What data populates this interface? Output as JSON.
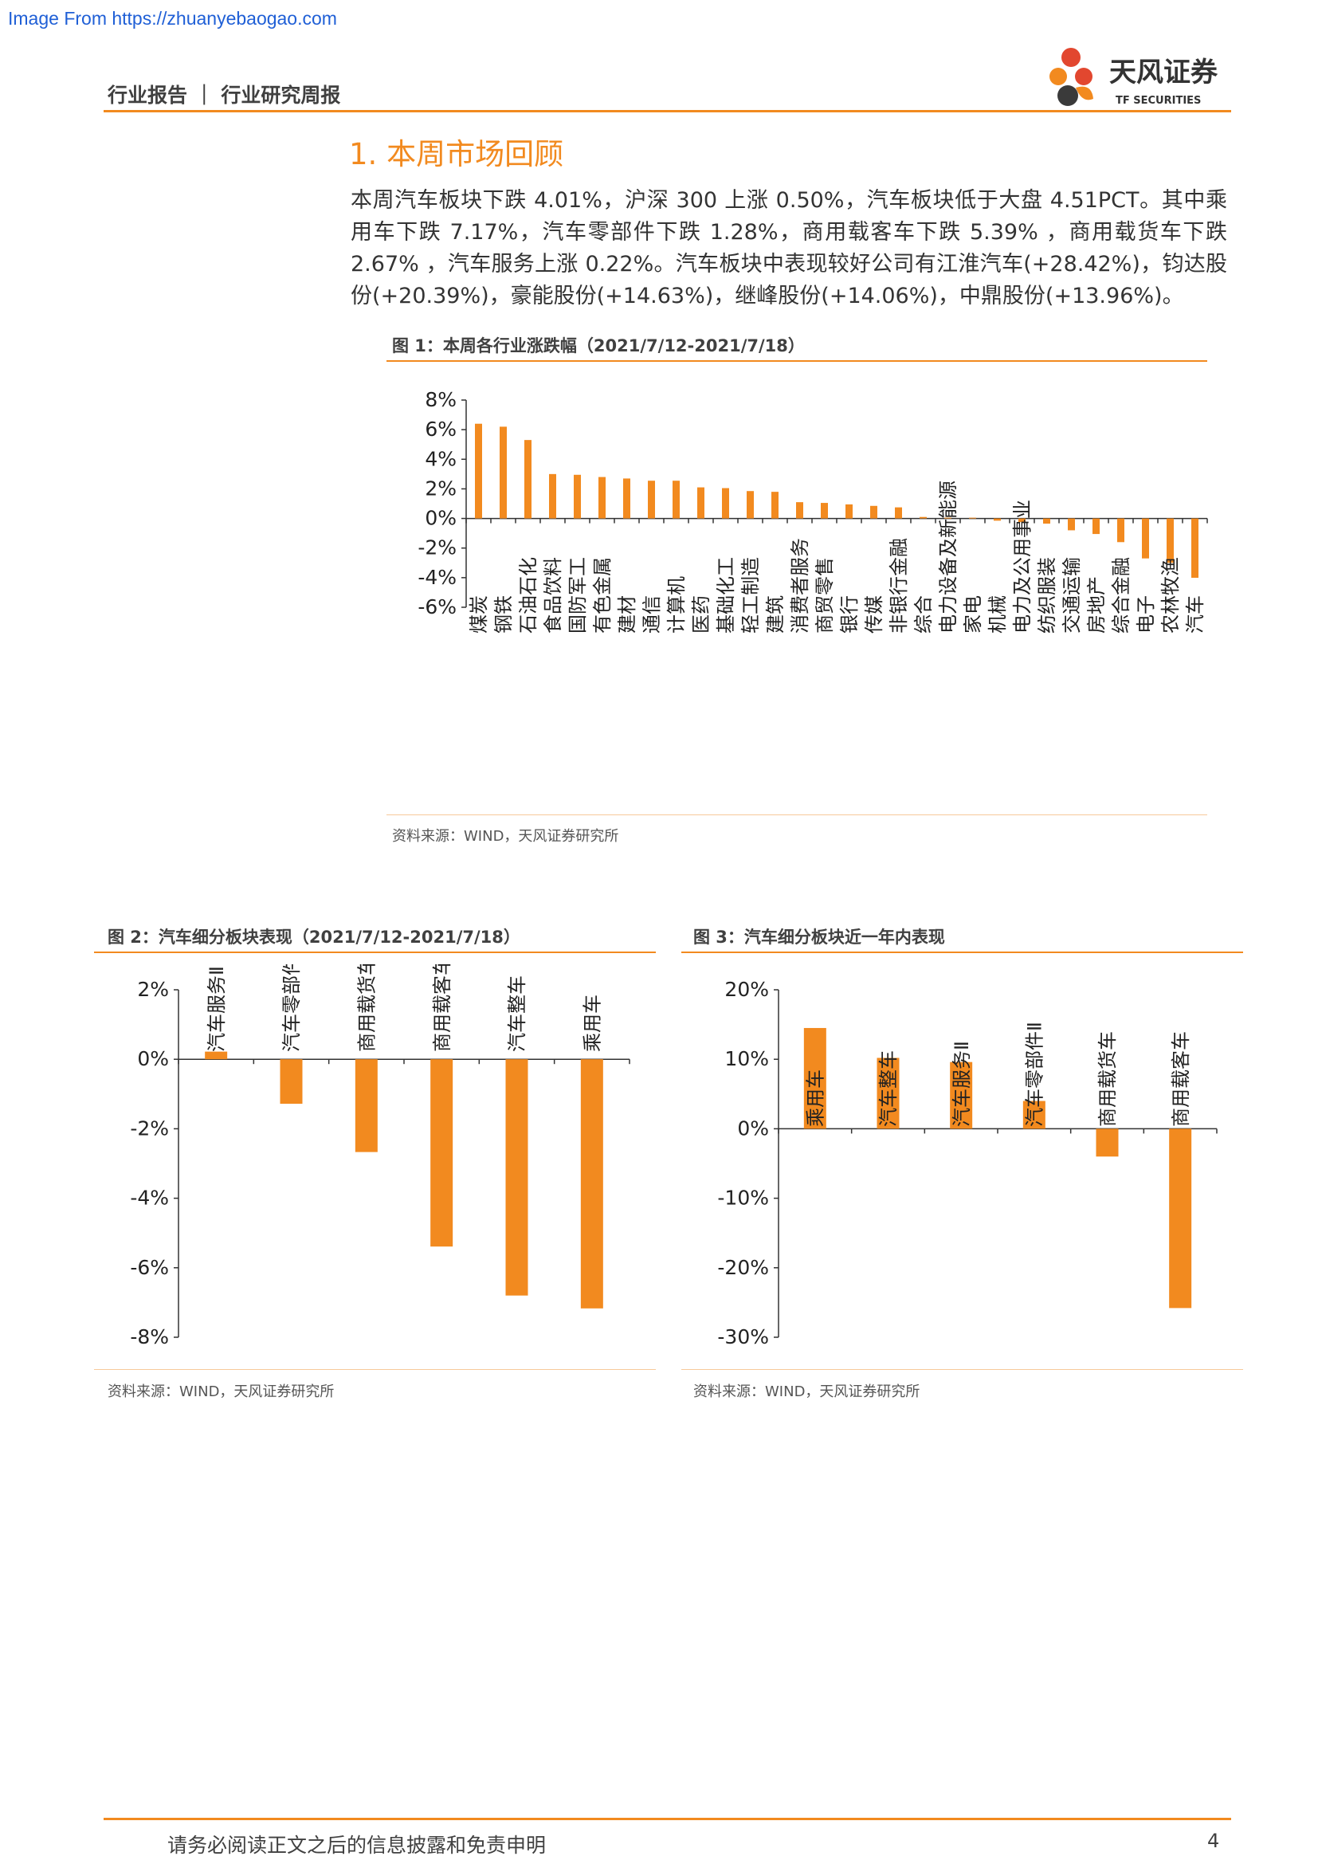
{
  "watermark": "Image From https://zhuanyebaogao.com",
  "header": {
    "left": "行业报告 ｜ 行业研究周报",
    "brand_cn": "天风证券",
    "brand_en": "TF SECURITIES"
  },
  "section_title": "1. 本周市场回顾",
  "body_text": "本周汽车板块下跌 4.01%，沪深 300 上涨 0.50%，汽车板块低于大盘 4.51PCT。其中乘用车下跌 7.17%，汽车零部件下跌 1.28%，商用载客车下跌 5.39% ，商用载货车下跌 2.67% ，汽车服务上涨 0.22%。汽车板块中表现较好公司有江淮汽车(+28.42%)，钧达股份(+20.39%)，豪能股份(+14.63%)，继峰股份(+14.06%)，中鼎股份(+13.96%)。",
  "colors": {
    "accent": "#f28a1f",
    "text": "#404040"
  },
  "figures": {
    "fig1": {
      "title": "图 1：本周各行业涨跌幅（2021/7/12-2021/7/18）",
      "source": "资料来源：WIND，天风证券研究所"
    },
    "fig2": {
      "title": "图 2：汽车细分板块表现（2021/7/12-2021/7/18）",
      "source": "资料来源：WIND，天风证券研究所"
    },
    "fig3": {
      "title": "图 3：汽车细分板块近一年内表现",
      "source": "资料来源：WIND，天风证券研究所"
    }
  },
  "chart_data": [
    {
      "type": "bar",
      "title": "图 1：本周各行业涨跌幅（2021/7/12-2021/7/18）",
      "categories": [
        "煤炭",
        "钢铁",
        "石油石化",
        "食品饮料",
        "国防军工",
        "有色金属",
        "建材",
        "通信",
        "计算机",
        "医药",
        "基础化工",
        "轻工制造",
        "建筑",
        "消费者服务",
        "商贸零售",
        "银行",
        "传媒",
        "非银行金融",
        "综合",
        "电力设备及新能源",
        "家电",
        "机械",
        "电力及公用事业",
        "纺织服装",
        "交通运输",
        "房地产",
        "综合金融",
        "电子",
        "农林牧渔",
        "汽车"
      ],
      "values": [
        6.4,
        6.2,
        5.3,
        3.0,
        2.95,
        2.8,
        2.7,
        2.55,
        2.55,
        2.1,
        2.05,
        1.85,
        1.8,
        1.1,
        1.05,
        0.95,
        0.85,
        0.75,
        0.1,
        0.05,
        0.05,
        -0.15,
        -0.25,
        -0.35,
        -0.8,
        -1.05,
        -1.6,
        -2.7,
        -3.0,
        -4.01
      ],
      "yticks": [
        "8%",
        "6%",
        "4%",
        "2%",
        "0%",
        "-2%",
        "-4%",
        "-6%"
      ],
      "ylim": [
        -6,
        8
      ],
      "grid": false
    },
    {
      "type": "bar",
      "title": "图 2：汽车细分板块表现（2021/7/12-2021/7/18）",
      "categories": [
        "汽车服务Ⅱ",
        "汽车零部件Ⅱ",
        "商用载货车",
        "商用载客车",
        "汽车整车",
        "乘用车"
      ],
      "values": [
        0.22,
        -1.28,
        -2.67,
        -5.39,
        -6.8,
        -7.17
      ],
      "yticks": [
        "2%",
        "0%",
        "-2%",
        "-4%",
        "-6%",
        "-8%"
      ],
      "ylim": [
        -8,
        2
      ],
      "grid": false
    },
    {
      "type": "bar",
      "title": "图 3：汽车细分板块近一年内表现",
      "categories": [
        "乘用车",
        "汽车整车",
        "汽车服务Ⅱ",
        "汽车零部件Ⅱ",
        "商用载货车",
        "商用载客车"
      ],
      "values": [
        14.5,
        10.2,
        9.6,
        4.0,
        -4.0,
        -25.8
      ],
      "yticks": [
        "20%",
        "10%",
        "0%",
        "-10%",
        "-20%",
        "-30%"
      ],
      "ylim": [
        -30,
        20
      ],
      "grid": false
    }
  ],
  "footer": {
    "note": "请务必阅读正文之后的信息披露和免责申明",
    "page": "4"
  }
}
